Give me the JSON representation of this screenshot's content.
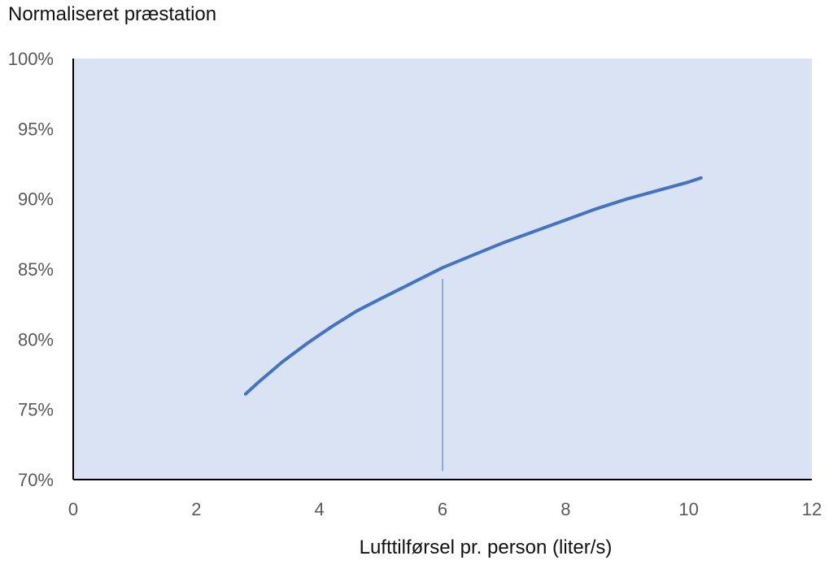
{
  "chart_data": {
    "type": "line",
    "ylabel": "Normaliseret præstation",
    "xlabel": "Lufttilførsel pr. person (liter/s)",
    "xlim": [
      0,
      12
    ],
    "ylim": [
      70,
      100
    ],
    "x_ticks": [
      0,
      2,
      4,
      6,
      8,
      10,
      12
    ],
    "y_ticks": [
      70,
      75,
      80,
      85,
      90,
      95,
      100
    ],
    "x_tick_labels": [
      "0",
      "2",
      "4",
      "6",
      "8",
      "10",
      "12"
    ],
    "y_tick_labels": [
      "70%",
      "75%",
      "80%",
      "85%",
      "90%",
      "95%",
      "100%"
    ],
    "grid": false,
    "plot_background": "#dae3f3",
    "series": [
      {
        "color": "#4472c4",
        "x": [
          2.8,
          3.0,
          3.4,
          3.8,
          4.2,
          4.6,
          5.0,
          5.5,
          6.0,
          6.5,
          7.0,
          7.5,
          8.0,
          8.5,
          9.0,
          9.5,
          10.0,
          10.2
        ],
        "y": [
          76.1,
          76.9,
          78.4,
          79.7,
          80.9,
          82.0,
          82.9,
          84.0,
          85.1,
          86.0,
          86.9,
          87.7,
          88.5,
          89.3,
          90.0,
          90.6,
          91.2,
          91.5
        ]
      }
    ],
    "reference_line": {
      "x": 6,
      "y_from": 70.6,
      "y_to": 84.3,
      "color": "#4472c4"
    }
  }
}
